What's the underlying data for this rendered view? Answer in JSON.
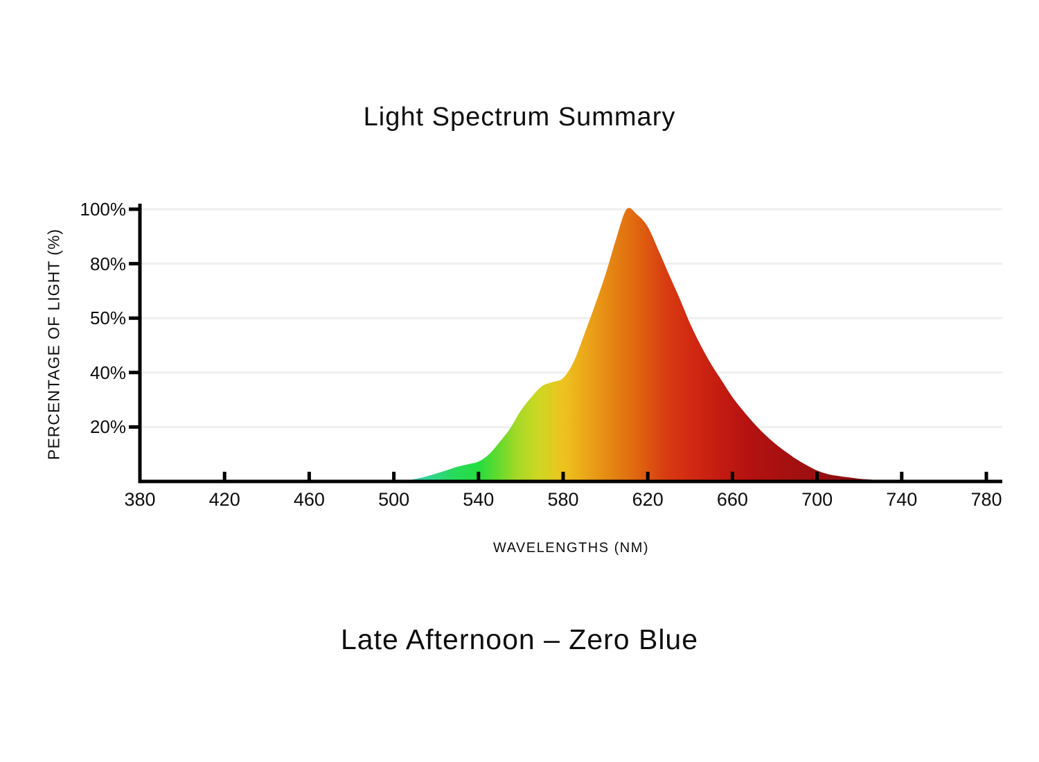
{
  "chart": {
    "title": "Light Spectrum Summary",
    "subtitle": "Late Afternoon – Zero Blue",
    "xlabel": "WAVELENGTHS (NM)",
    "ylabel": "PERCENTAGE OF LIGHT (%)"
  },
  "chart_data": {
    "type": "area",
    "title": "Light Spectrum Summary",
    "subtitle": "Late Afternoon – Zero Blue",
    "xlabel": "WAVELENGTHS (NM)",
    "ylabel": "PERCENTAGE OF LIGHT (%)",
    "x_ticks": [
      380,
      420,
      460,
      500,
      540,
      580,
      620,
      660,
      700,
      740,
      780
    ],
    "x_range": [
      380,
      780
    ],
    "y_tick_labels": [
      "100%",
      "80%",
      "50%",
      "40%",
      "20%"
    ],
    "y_tick_values": [
      100,
      80,
      50,
      40,
      20
    ],
    "y_scale": "ticks evenly spaced (non-linear value scale)",
    "grid": true,
    "legend": "none",
    "axis_color": "#000000",
    "grid_color": "#efefef",
    "series": [
      {
        "name": "Late Afternoon – Zero Blue",
        "peak_nm": 610,
        "peak_pct": 100,
        "points": [
          [
            503,
            0
          ],
          [
            508,
            0.6
          ],
          [
            512,
            1.2
          ],
          [
            516,
            2
          ],
          [
            520,
            2.9
          ],
          [
            525,
            4.1
          ],
          [
            530,
            5.4
          ],
          [
            535,
            6.3
          ],
          [
            540,
            7.3
          ],
          [
            545,
            10
          ],
          [
            550,
            14.5
          ],
          [
            555,
            19.5
          ],
          [
            560,
            26
          ],
          [
            565,
            31
          ],
          [
            570,
            35
          ],
          [
            575,
            36.5
          ],
          [
            580,
            38
          ],
          [
            585,
            42
          ],
          [
            590,
            47
          ],
          [
            595,
            57
          ],
          [
            600,
            74
          ],
          [
            605,
            89
          ],
          [
            610,
            100
          ],
          [
            615,
            98
          ],
          [
            620,
            93.5
          ],
          [
            625,
            85
          ],
          [
            630,
            74
          ],
          [
            635,
            61
          ],
          [
            640,
            49
          ],
          [
            645,
            45
          ],
          [
            650,
            41.5
          ],
          [
            655,
            37
          ],
          [
            660,
            31
          ],
          [
            665,
            26
          ],
          [
            670,
            21.5
          ],
          [
            675,
            17.5
          ],
          [
            680,
            14
          ],
          [
            685,
            11
          ],
          [
            690,
            8.3
          ],
          [
            695,
            6
          ],
          [
            700,
            4
          ],
          [
            705,
            2.7
          ],
          [
            710,
            2
          ],
          [
            715,
            1.5
          ],
          [
            720,
            1
          ],
          [
            725,
            0.7
          ],
          [
            730,
            0.5
          ],
          [
            735,
            0.2
          ],
          [
            740,
            0
          ]
        ]
      }
    ],
    "gradient_stops": [
      {
        "nm": 503,
        "color": "#5accc6"
      },
      {
        "nm": 515,
        "color": "#32d49b"
      },
      {
        "nm": 528,
        "color": "#28db5b"
      },
      {
        "nm": 540,
        "color": "#24dd3f"
      },
      {
        "nm": 550,
        "color": "#67da2c"
      },
      {
        "nm": 558,
        "color": "#a4d827"
      },
      {
        "nm": 568,
        "color": "#cdd722"
      },
      {
        "nm": 580,
        "color": "#eec31e"
      },
      {
        "nm": 592,
        "color": "#eaa318"
      },
      {
        "nm": 605,
        "color": "#e37f12"
      },
      {
        "nm": 615,
        "color": "#e06610"
      },
      {
        "nm": 628,
        "color": "#d83d11"
      },
      {
        "nm": 640,
        "color": "#d22a12"
      },
      {
        "nm": 655,
        "color": "#c21b11"
      },
      {
        "nm": 670,
        "color": "#b21111"
      },
      {
        "nm": 690,
        "color": "#a31010"
      },
      {
        "nm": 710,
        "color": "#920f0f"
      },
      {
        "nm": 728,
        "color": "#7f0e0d"
      },
      {
        "nm": 740,
        "color": "#700c0c"
      }
    ]
  }
}
